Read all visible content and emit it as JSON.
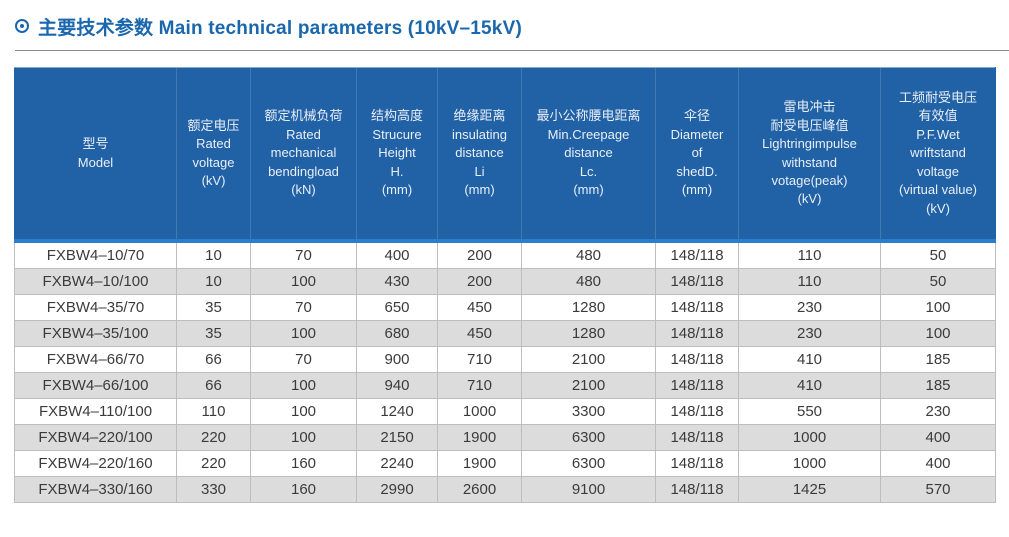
{
  "header": {
    "bullet_icon": "circled-dot",
    "title": "主要技术参数 Main technical parameters (10kV–15kV)"
  },
  "table": {
    "columns": [
      {
        "id": "model",
        "lines": [
          "型号",
          "Model"
        ]
      },
      {
        "id": "rated-voltage",
        "lines": [
          "额定电压",
          "Rated",
          "voltage",
          "(kV)"
        ]
      },
      {
        "id": "rated-mech-load",
        "lines": [
          "额定机械负荷",
          "Rated",
          "mechanical",
          "bendingload",
          "(kN)"
        ]
      },
      {
        "id": "structure-height",
        "lines": [
          "结构高度",
          "Strucure",
          "Height",
          "H.",
          "(mm)"
        ]
      },
      {
        "id": "insulating-dist",
        "lines": [
          "绝缘距离",
          "insulating",
          "distance",
          "Li",
          "(mm)"
        ]
      },
      {
        "id": "min-creepage",
        "lines": [
          "最小公称腰电距离",
          "Min.Creepage",
          "distance",
          "Lc.",
          "(mm)"
        ]
      },
      {
        "id": "shed-diameter",
        "lines": [
          "伞径",
          "Diameter",
          "of",
          "shedD.",
          "(mm)"
        ]
      },
      {
        "id": "lightning-impulse",
        "lines": [
          "雷电冲击",
          "耐受电压峰值",
          "Lightringimpulse",
          "withstand",
          "votage(peak)",
          "(kV)"
        ]
      },
      {
        "id": "pf-wet-withstand",
        "lines": [
          "工频耐受电压",
          "有效值",
          "P.F.Wet",
          "wriftstand",
          "voltage",
          "(virtual value)",
          "(kV)"
        ]
      }
    ],
    "rows": [
      [
        "FXBW4–10/70",
        "10",
        "70",
        "400",
        "200",
        "480",
        "148/118",
        "110",
        "50"
      ],
      [
        "FXBW4–10/100",
        "10",
        "100",
        "430",
        "200",
        "480",
        "148/118",
        "110",
        "50"
      ],
      [
        "FXBW4–35/70",
        "35",
        "70",
        "650",
        "450",
        "1280",
        "148/118",
        "230",
        "100"
      ],
      [
        "FXBW4–35/100",
        "35",
        "100",
        "680",
        "450",
        "1280",
        "148/118",
        "230",
        "100"
      ],
      [
        "FXBW4–66/70",
        "66",
        "70",
        "900",
        "710",
        "2100",
        "148/118",
        "410",
        "185"
      ],
      [
        "FXBW4–66/100",
        "66",
        "100",
        "940",
        "710",
        "2100",
        "148/118",
        "410",
        "185"
      ],
      [
        "FXBW4–110/100",
        "110",
        "100",
        "1240",
        "1000",
        "3300",
        "148/118",
        "550",
        "230"
      ],
      [
        "FXBW4–220/100",
        "220",
        "100",
        "2150",
        "1900",
        "6300",
        "148/118",
        "1000",
        "400"
      ],
      [
        "FXBW4–220/160",
        "220",
        "160",
        "2240",
        "1900",
        "6300",
        "148/118",
        "1000",
        "400"
      ],
      [
        "FXBW4–330/160",
        "330",
        "160",
        "2990",
        "2600",
        "9100",
        "148/118",
        "1425",
        "570"
      ]
    ]
  },
  "colors": {
    "title_blue": "#1a67ad",
    "header_bg": "#2161a6",
    "header_divider": "#4478b1",
    "header_separator_line": "#2b7ecb",
    "alt_row_gray": "#dcdcdc",
    "grid_border": "#bdbdbd",
    "body_text": "#3b3b3b"
  }
}
